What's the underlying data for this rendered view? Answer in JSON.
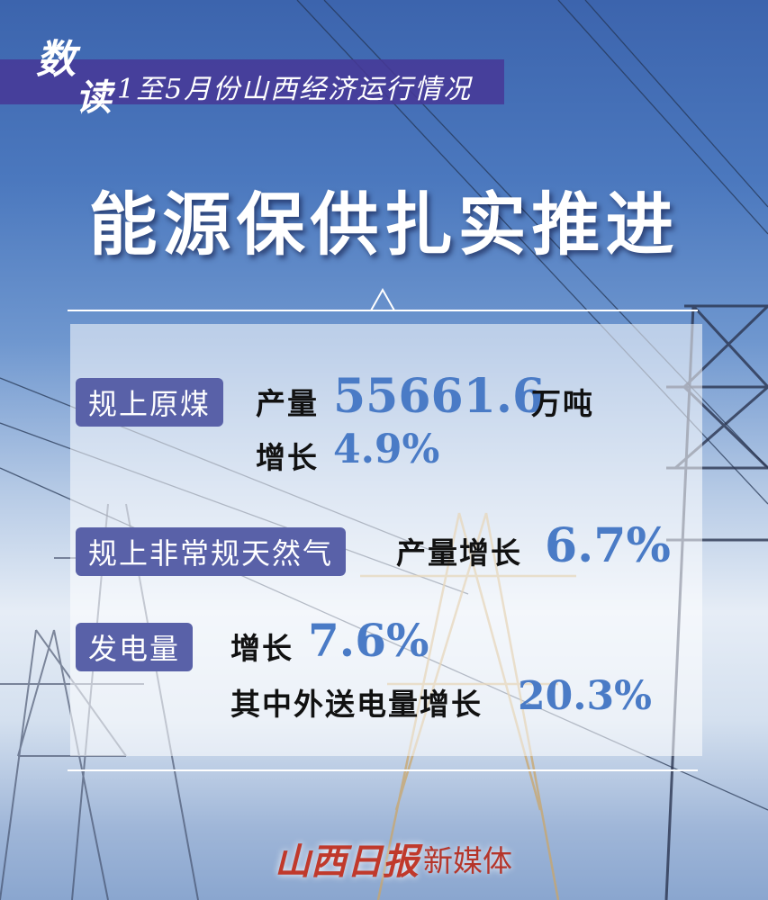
{
  "header": {
    "char1": "数",
    "char2": "读",
    "subtitle": "1至5月份山西经济运行情况",
    "title": "能源保供扎实推进"
  },
  "items": [
    {
      "label": "规上原煤",
      "lines": [
        {
          "prefix": "产量",
          "value": "55661.6",
          "suffix": "万吨"
        },
        {
          "prefix": "增长",
          "value": "4.9%"
        }
      ]
    },
    {
      "label": "规上非常规天然气",
      "lines": [
        {
          "prefix": "产量增长",
          "value": "6.7%"
        }
      ]
    },
    {
      "label": "发电量",
      "lines": [
        {
          "prefix": "增长",
          "value": "7.6%"
        },
        {
          "prefix": "其中外送电量增长",
          "value": "20.3%"
        }
      ]
    }
  ],
  "footer": {
    "logo": "山西日报",
    "suffix": "新媒体"
  },
  "colors": {
    "label_bg": "#5961a8",
    "number": "#4a7bc6",
    "banner": "#46379a",
    "logo": "#c0392b"
  }
}
